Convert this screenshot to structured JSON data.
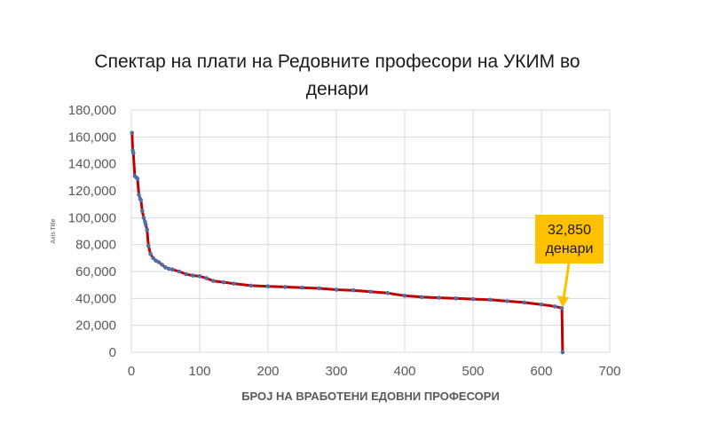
{
  "chart_data": {
    "type": "line",
    "title": "Спектар на плати на Редовните професори на УКИМ во денари",
    "xlabel": "БРОЈ НА ВРАБОТЕНИ ЕДОВНИ ПРОФЕСОРИ",
    "ylabel": "Axis Title",
    "xlim": [
      0,
      700
    ],
    "ylim": [
      0,
      180000
    ],
    "xticks": [
      "0",
      "100",
      "200",
      "300",
      "400",
      "500",
      "600",
      "700"
    ],
    "yticks": [
      "0",
      "20,000",
      "40,000",
      "60,000",
      "80,000",
      "100,000",
      "120,000",
      "140,000",
      "160,000",
      "180,000"
    ],
    "grid": true,
    "legend": "none",
    "line_color": "#c00000",
    "marker_color": "#4f6fa8",
    "series": [
      {
        "x": [
          1,
          2,
          3,
          5,
          7,
          9,
          11,
          13,
          14,
          16,
          18,
          20,
          21,
          23,
          25,
          28,
          32,
          36,
          40,
          45,
          50,
          55,
          60,
          70,
          80,
          90,
          100,
          110,
          120,
          135,
          150,
          175,
          200,
          225,
          250,
          275,
          300,
          325,
          350,
          375,
          400,
          425,
          450,
          475,
          500,
          525,
          550,
          575,
          600,
          620,
          630,
          631
        ],
        "y": [
          163000,
          150000,
          148000,
          131000,
          130000,
          129000,
          117000,
          114000,
          113000,
          105000,
          100000,
          97000,
          95000,
          91000,
          79000,
          73000,
          70000,
          68000,
          67000,
          65000,
          63000,
          62000,
          61500,
          60000,
          58000,
          57000,
          56500,
          55000,
          53000,
          52000,
          51000,
          49500,
          49000,
          48500,
          48000,
          47500,
          46500,
          46000,
          45000,
          44000,
          42000,
          41000,
          40500,
          40000,
          39500,
          39000,
          38000,
          37000,
          35500,
          34000,
          32850,
          0
        ]
      }
    ],
    "annotation": {
      "line1": "32,850",
      "line2": "денари",
      "color": "#ffc000",
      "x": 630,
      "y": 32850
    }
  }
}
